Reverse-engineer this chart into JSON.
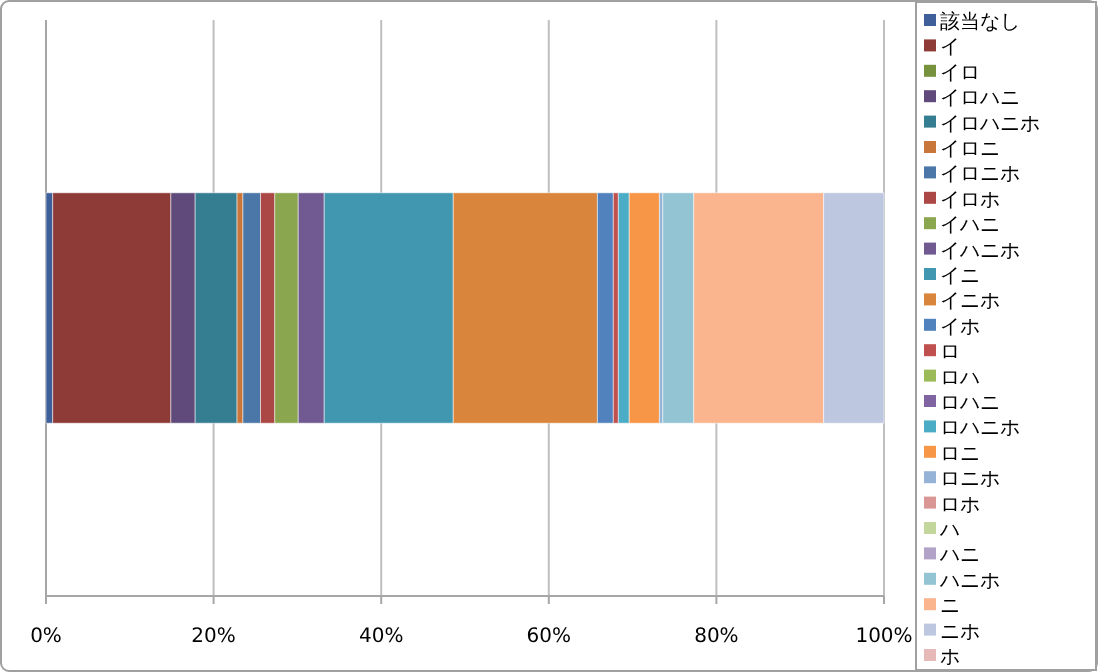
{
  "chart_data": {
    "type": "bar",
    "orientation": "horizontal",
    "stacked": true,
    "categories": [
      null
    ],
    "series": [
      {
        "name": "該当なし",
        "color": "#3f5f9a",
        "values": [
          0.8
        ]
      },
      {
        "name": "イ",
        "color": "#8e3a37",
        "values": [
          14.1
        ]
      },
      {
        "name": "イロ",
        "color": "#76923c",
        "values": [
          0
        ]
      },
      {
        "name": "イロハニ",
        "color": "#5f4a7b",
        "values": [
          2.9
        ]
      },
      {
        "name": "イロハニホ",
        "color": "#357d91",
        "values": [
          5.0
        ]
      },
      {
        "name": "イロニ",
        "color": "#c9763a",
        "values": [
          0.7
        ]
      },
      {
        "name": "イロニホ",
        "color": "#4a76a8",
        "values": [
          2.1
        ]
      },
      {
        "name": "イロホ",
        "color": "#ab4744",
        "values": [
          1.7
        ]
      },
      {
        "name": "イハニ",
        "color": "#8aa64e",
        "values": [
          2.8
        ]
      },
      {
        "name": "イハニホ",
        "color": "#715a92",
        "values": [
          3.1
        ]
      },
      {
        "name": "イニ",
        "color": "#4197b0",
        "values": [
          15.4
        ]
      },
      {
        "name": "イニホ",
        "color": "#d9853b",
        "values": [
          17.2
        ]
      },
      {
        "name": "イホ",
        "color": "#5282be",
        "values": [
          1.9
        ]
      },
      {
        "name": "ロ",
        "color": "#c0504d",
        "values": [
          0.6
        ]
      },
      {
        "name": "ロハ",
        "color": "#9bbb59",
        "values": [
          0
        ]
      },
      {
        "name": "ロハニ",
        "color": "#8064a2",
        "values": [
          0
        ]
      },
      {
        "name": "ロハニホ",
        "color": "#4bacc6",
        "values": [
          1.3
        ]
      },
      {
        "name": "ロニ",
        "color": "#f79646",
        "values": [
          3.6
        ]
      },
      {
        "name": "ロニホ",
        "color": "#95b3d7",
        "values": [
          0.4
        ]
      },
      {
        "name": "ロホ",
        "color": "#d99694",
        "values": [
          0
        ]
      },
      {
        "name": "ハ",
        "color": "#c3d69b",
        "values": [
          0
        ]
      },
      {
        "name": "ハニ",
        "color": "#b3a2c7",
        "values": [
          0
        ]
      },
      {
        "name": "ハニホ",
        "color": "#93c4d4",
        "values": [
          3.7
        ]
      },
      {
        "name": "ニ",
        "color": "#fab58e",
        "values": [
          15.5
        ]
      },
      {
        "name": "ニホ",
        "color": "#bdc7df",
        "values": [
          7.2
        ]
      },
      {
        "name": "ホ",
        "color": "#e6b9b8",
        "values": [
          0
        ]
      }
    ],
    "xlim": [
      0,
      100
    ],
    "xticks": [
      {
        "value": 0,
        "label": "0%"
      },
      {
        "value": 20,
        "label": "20%"
      },
      {
        "value": 40,
        "label": "40%"
      },
      {
        "value": 60,
        "label": "60%"
      },
      {
        "value": 80,
        "label": "80%"
      },
      {
        "value": 100,
        "label": "100%"
      }
    ],
    "grid": "x",
    "legend": "right"
  }
}
